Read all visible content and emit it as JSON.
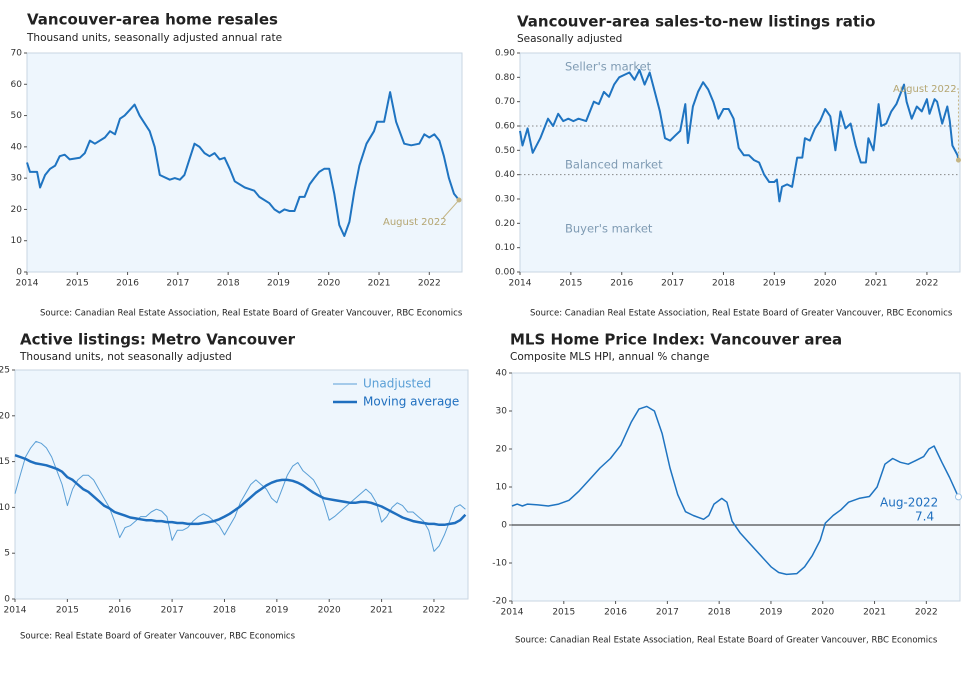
{
  "chart_data": [
    {
      "type": "line",
      "title": "Vancouver-area home resales",
      "subtitle": "Thousand units, seasonally adjusted annual rate",
      "source": "Source: Canadian Real Estate Association, Real Estate Board of Greater Vancouver, RBC Economics",
      "annotation": "August 2022",
      "x": [
        2014.0,
        2014.06,
        2014.2,
        2014.26,
        2014.36,
        2014.46,
        2014.56,
        2014.65,
        2014.75,
        2014.85,
        2015.05,
        2015.15,
        2015.25,
        2015.35,
        2015.55,
        2015.65,
        2015.75,
        2015.85,
        2015.94,
        2016.14,
        2016.24,
        2016.44,
        2016.54,
        2016.64,
        2016.84,
        2016.94,
        2017.04,
        2017.13,
        2017.23,
        2017.33,
        2017.43,
        2017.53,
        2017.63,
        2017.73,
        2017.83,
        2017.93,
        2018.03,
        2018.13,
        2018.33,
        2018.52,
        2018.62,
        2018.82,
        2018.92,
        2019.02,
        2019.12,
        2019.22,
        2019.32,
        2019.42,
        2019.52,
        2019.62,
        2019.71,
        2019.81,
        2019.91,
        2020.01,
        2020.11,
        2020.21,
        2020.31,
        2020.41,
        2020.51,
        2020.61,
        2020.75,
        2020.9,
        2020.96,
        2021.1,
        2021.22,
        2021.34,
        2021.5,
        2021.64,
        2021.8,
        2021.9,
        2022.0,
        2022.1,
        2022.2,
        2022.29,
        2022.39,
        2022.49,
        2022.59
      ],
      "series": [
        {
          "color": "#1f74c1",
          "values": [
            35,
            32,
            32,
            27,
            31,
            33,
            34,
            37,
            37.5,
            36,
            36.5,
            38,
            42,
            41,
            43,
            45,
            44,
            49,
            50,
            53.5,
            50,
            45,
            40,
            31,
            29.5,
            30,
            29.5,
            31,
            36,
            41,
            40,
            38,
            37,
            38,
            36,
            36.5,
            33,
            29,
            27,
            26,
            24,
            22,
            20,
            19,
            20,
            19.5,
            19.5,
            24,
            24,
            28,
            30,
            32,
            33,
            33,
            25,
            15,
            11.5,
            16,
            26,
            34,
            41,
            45,
            48,
            48,
            57.5,
            48,
            41,
            40.5,
            41,
            44,
            43,
            44,
            42,
            37,
            30,
            25,
            23
          ]
        }
      ],
      "xlim": [
        2014,
        2022.65
      ],
      "xticks": [
        2014,
        2015,
        2016,
        2017,
        2018,
        2019,
        2020,
        2021,
        2022
      ],
      "ylim": [
        0,
        70
      ],
      "yticks": [
        0,
        10,
        20,
        30,
        40,
        50,
        60,
        70
      ]
    },
    {
      "type": "line",
      "title": "Vancouver-area sales-to-new listings ratio",
      "subtitle": "Seasonally adjusted",
      "source": "Source: Canadian Real Estate Association, Real Estate Board of Greater Vancouver, RBC Economics",
      "annotation": "August 2022",
      "zone_labels": [
        "Seller's market",
        "Balanced market",
        "Buyer's market"
      ],
      "reference_lines": [
        0.6,
        0.4
      ],
      "x": [
        2014.0,
        2014.05,
        2014.15,
        2014.25,
        2014.4,
        2014.55,
        2014.65,
        2014.75,
        2014.85,
        2014.95,
        2015.05,
        2015.15,
        2015.3,
        2015.45,
        2015.55,
        2015.65,
        2015.75,
        2015.85,
        2015.95,
        2016.05,
        2016.15,
        2016.25,
        2016.35,
        2016.45,
        2016.55,
        2016.65,
        2016.75,
        2016.85,
        2016.95,
        2017.05,
        2017.15,
        2017.25,
        2017.3,
        2017.4,
        2017.5,
        2017.6,
        2017.7,
        2017.8,
        2017.9,
        2018.0,
        2018.1,
        2018.2,
        2018.3,
        2018.4,
        2018.5,
        2018.6,
        2018.7,
        2018.8,
        2018.9,
        2019.0,
        2019.05,
        2019.1,
        2019.15,
        2019.25,
        2019.35,
        2019.45,
        2019.55,
        2019.6,
        2019.7,
        2019.8,
        2019.9,
        2020.0,
        2020.1,
        2020.2,
        2020.3,
        2020.4,
        2020.5,
        2020.6,
        2020.7,
        2020.8,
        2020.85,
        2020.95,
        2021.05,
        2021.1,
        2021.2,
        2021.3,
        2021.4,
        2021.55,
        2021.6,
        2021.7,
        2021.8,
        2021.9,
        2022.0,
        2022.05,
        2022.15,
        2022.2,
        2022.3,
        2022.4,
        2022.45,
        2022.5,
        2022.6,
        2022.62
      ],
      "series": [
        {
          "color": "#1f74c1",
          "values": [
            0.58,
            0.52,
            0.59,
            0.49,
            0.55,
            0.63,
            0.6,
            0.65,
            0.62,
            0.63,
            0.62,
            0.63,
            0.62,
            0.7,
            0.69,
            0.74,
            0.72,
            0.77,
            0.8,
            0.81,
            0.82,
            0.79,
            0.83,
            0.77,
            0.82,
            0.74,
            0.66,
            0.55,
            0.54,
            0.56,
            0.58,
            0.69,
            0.53,
            0.68,
            0.74,
            0.78,
            0.75,
            0.7,
            0.63,
            0.67,
            0.67,
            0.63,
            0.51,
            0.48,
            0.48,
            0.46,
            0.45,
            0.4,
            0.37,
            0.37,
            0.38,
            0.29,
            0.35,
            0.36,
            0.35,
            0.47,
            0.47,
            0.55,
            0.54,
            0.59,
            0.62,
            0.67,
            0.64,
            0.5,
            0.66,
            0.59,
            0.61,
            0.52,
            0.45,
            0.45,
            0.55,
            0.5,
            0.69,
            0.6,
            0.61,
            0.66,
            0.69,
            0.77,
            0.7,
            0.63,
            0.68,
            0.66,
            0.71,
            0.65,
            0.71,
            0.7,
            0.61,
            0.68,
            0.62,
            0.52,
            0.48,
            0.46
          ]
        }
      ],
      "xlim": [
        2014,
        2022.65
      ],
      "xticks": [
        2014,
        2015,
        2016,
        2017,
        2018,
        2019,
        2020,
        2021,
        2022
      ],
      "ylim": [
        0,
        0.9
      ],
      "yticks": [
        {
          "value": 0,
          "label": "0.00"
        },
        {
          "value": 0.1,
          "label": "0.10"
        },
        {
          "value": 0.2,
          "label": "0.20"
        },
        {
          "value": 0.3,
          "label": "0.30"
        },
        {
          "value": 0.4,
          "label": "0.40"
        },
        {
          "value": 0.5,
          "label": "0.50"
        },
        {
          "value": 0.6,
          "label": "0.60"
        },
        {
          "value": 0.7,
          "label": "0.70"
        },
        {
          "value": 0.8,
          "label": "0.80"
        },
        {
          "value": 0.9,
          "label": "0.90"
        }
      ]
    },
    {
      "type": "line",
      "title": "Active listings: Metro Vancouver",
      "subtitle": "Thousand units, not seasonally adjusted",
      "source": "Source: Real Estate Board of Greater Vancouver, RBC Economics",
      "legend": "top-right",
      "x": [
        2014.0,
        2014.1,
        2014.2,
        2014.3,
        2014.4,
        2014.5,
        2014.6,
        2014.7,
        2014.8,
        2014.9,
        2015.0,
        2015.1,
        2015.2,
        2015.3,
        2015.4,
        2015.5,
        2015.6,
        2015.7,
        2015.8,
        2015.9,
        2016.0,
        2016.1,
        2016.2,
        2016.3,
        2016.4,
        2016.5,
        2016.6,
        2016.7,
        2016.8,
        2016.9,
        2017.0,
        2017.1,
        2017.2,
        2017.3,
        2017.4,
        2017.5,
        2017.6,
        2017.7,
        2017.8,
        2017.9,
        2018.0,
        2018.1,
        2018.2,
        2018.3,
        2018.4,
        2018.5,
        2018.6,
        2018.7,
        2018.8,
        2018.9,
        2019.0,
        2019.1,
        2019.2,
        2019.3,
        2019.4,
        2019.5,
        2019.6,
        2019.7,
        2019.8,
        2019.9,
        2020.0,
        2020.1,
        2020.2,
        2020.3,
        2020.4,
        2020.5,
        2020.6,
        2020.7,
        2020.8,
        2020.9,
        2021.0,
        2021.1,
        2021.2,
        2021.3,
        2021.4,
        2021.5,
        2021.6,
        2021.7,
        2021.8,
        2021.9,
        2022.0,
        2022.1,
        2022.2,
        2022.3,
        2022.4,
        2022.5,
        2022.6
      ],
      "series": [
        {
          "name": "Unadjusted",
          "color": "#5a9fd6",
          "width": 1,
          "values": [
            11.5,
            13.5,
            15.5,
            16.5,
            17.2,
            17.0,
            16.5,
            15.5,
            14.0,
            12.5,
            10.2,
            12.0,
            13.0,
            13.5,
            13.5,
            13.0,
            12.0,
            11.0,
            10.0,
            8.5,
            6.7,
            7.8,
            8.0,
            8.5,
            9.0,
            9.0,
            9.5,
            9.8,
            9.6,
            9.0,
            6.4,
            7.5,
            7.5,
            7.8,
            8.5,
            9.0,
            9.3,
            9.0,
            8.5,
            8.0,
            7.0,
            8.0,
            9.0,
            10.5,
            11.5,
            12.5,
            13.0,
            12.5,
            12.0,
            11.0,
            10.5,
            12.0,
            13.5,
            14.5,
            14.9,
            14.0,
            13.5,
            13.0,
            12.0,
            10.5,
            8.6,
            9.0,
            9.5,
            10.0,
            10.5,
            11.0,
            11.5,
            12.0,
            11.5,
            10.5,
            8.4,
            9.0,
            10.0,
            10.5,
            10.2,
            9.5,
            9.5,
            9.0,
            8.5,
            7.5,
            5.2,
            5.8,
            7.0,
            8.5,
            10.0,
            10.3,
            9.8
          ]
        },
        {
          "name": "Moving average",
          "color": "#1f6fbf",
          "width": 2.5,
          "values": [
            15.7,
            15.5,
            15.3,
            15.0,
            14.8,
            14.7,
            14.6,
            14.4,
            14.2,
            13.9,
            13.3,
            13.0,
            12.5,
            12.0,
            11.7,
            11.2,
            10.7,
            10.2,
            9.9,
            9.5,
            9.3,
            9.1,
            8.9,
            8.8,
            8.7,
            8.6,
            8.6,
            8.5,
            8.5,
            8.4,
            8.4,
            8.3,
            8.3,
            8.2,
            8.2,
            8.2,
            8.3,
            8.4,
            8.5,
            8.7,
            9.0,
            9.3,
            9.7,
            10.1,
            10.6,
            11.1,
            11.6,
            12.0,
            12.4,
            12.7,
            12.9,
            13.0,
            13.0,
            12.9,
            12.7,
            12.4,
            12.0,
            11.6,
            11.3,
            11.0,
            10.9,
            10.8,
            10.7,
            10.6,
            10.5,
            10.5,
            10.6,
            10.6,
            10.5,
            10.3,
            10.1,
            9.8,
            9.5,
            9.2,
            8.9,
            8.7,
            8.5,
            8.4,
            8.3,
            8.2,
            8.2,
            8.1,
            8.1,
            8.2,
            8.3,
            8.6,
            9.2
          ]
        }
      ],
      "xlim": [
        2014,
        2022.65
      ],
      "xticks": [
        2014,
        2015,
        2016,
        2017,
        2018,
        2019,
        2020,
        2021,
        2022
      ],
      "ylim": [
        0,
        25
      ],
      "yticks": [
        0,
        5,
        10,
        15,
        20,
        25
      ]
    },
    {
      "type": "line",
      "title": "MLS Home Price Index: Vancouver area",
      "subtitle": "Composite MLS HPI, annual % change",
      "source": "Source: Canadian Real Estate Association, Real Estate Board of Greater Vancouver, RBC Economics",
      "annotation": "Aug-2022",
      "zero_line": true,
      "x": [
        2014.0,
        2014.1,
        2014.2,
        2014.3,
        2014.5,
        2014.7,
        2014.9,
        2015.1,
        2015.3,
        2015.5,
        2015.7,
        2015.9,
        2016.1,
        2016.3,
        2016.45,
        2016.6,
        2016.75,
        2016.9,
        2017.05,
        2017.2,
        2017.35,
        2017.5,
        2017.7,
        2017.8,
        2017.9,
        2018.05,
        2018.15,
        2018.25,
        2018.4,
        2018.6,
        2018.8,
        2019.0,
        2019.15,
        2019.3,
        2019.5,
        2019.65,
        2019.8,
        2019.95,
        2020.05,
        2020.2,
        2020.35,
        2020.5,
        2020.7,
        2020.9,
        2021.05,
        2021.2,
        2021.35,
        2021.5,
        2021.65,
        2021.8,
        2021.95,
        2022.05,
        2022.15,
        2022.3,
        2022.45,
        2022.62
      ],
      "series": [
        {
          "color": "#1f74c1",
          "width": 1.5,
          "values": [
            5,
            5.5,
            5,
            5.5,
            5.3,
            5.0,
            5.5,
            6.5,
            9,
            12,
            15,
            17.5,
            21,
            27,
            30.5,
            31.2,
            30,
            24,
            15,
            8,
            3.5,
            2.5,
            1.5,
            2.5,
            5.5,
            7,
            6,
            1,
            -2,
            -5,
            -8,
            -11,
            -12.5,
            -13,
            -12.8,
            -11,
            -8,
            -4,
            0.5,
            2.5,
            4,
            6,
            7,
            7.5,
            10,
            16,
            17.5,
            16.5,
            16,
            17,
            18,
            20,
            20.8,
            16.5,
            12.5,
            7.4
          ]
        }
      ],
      "xlim": [
        2014,
        2022.65
      ],
      "xticks": [
        2014,
        2015,
        2016,
        2017,
        2018,
        2019,
        2020,
        2021,
        2022
      ],
      "ylim": [
        -20,
        40
      ],
      "yticks": [
        -20,
        -10,
        0,
        10,
        20,
        30,
        40
      ]
    }
  ]
}
